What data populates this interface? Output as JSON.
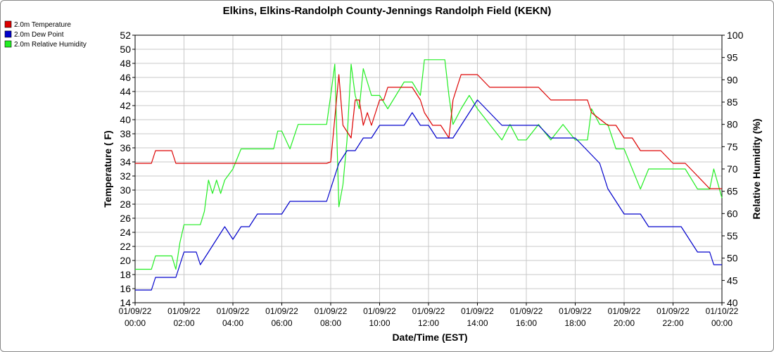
{
  "chart_data": {
    "type": "line",
    "title": "Elkins, Elkins-Randolph County-Jennings Randolph Field (KEKN)",
    "xlabel": "Date/Time (EST)",
    "ylabel_left": "Temperature ( F)",
    "ylabel_right": "Relative Humidity (%)",
    "ylim_left": [
      14,
      52
    ],
    "ylim_right": [
      40,
      100
    ],
    "xlim_hours": [
      0,
      24
    ],
    "grid": true,
    "legend_position": "top-left",
    "y_ticks_left": [
      "14",
      "16",
      "18",
      "20",
      "22",
      "24",
      "26",
      "28",
      "30",
      "32",
      "34",
      "36",
      "38",
      "40",
      "42",
      "44",
      "46",
      "48",
      "50",
      "52"
    ],
    "y_ticks_right": [
      "40",
      "45",
      "50",
      "55",
      "60",
      "65",
      "70",
      "75",
      "80",
      "85",
      "90",
      "95",
      "100"
    ],
    "x_ticks": [
      {
        "date": "01/09/22",
        "time": "00:00"
      },
      {
        "date": "01/09/22",
        "time": "02:00"
      },
      {
        "date": "01/09/22",
        "time": "04:00"
      },
      {
        "date": "01/09/22",
        "time": "06:00"
      },
      {
        "date": "01/09/22",
        "time": "08:00"
      },
      {
        "date": "01/09/22",
        "time": "10:00"
      },
      {
        "date": "01/09/22",
        "time": "12:00"
      },
      {
        "date": "01/09/22",
        "time": "14:00"
      },
      {
        "date": "01/09/22",
        "time": "16:00"
      },
      {
        "date": "01/09/22",
        "time": "18:00"
      },
      {
        "date": "01/09/22",
        "time": "20:00"
      },
      {
        "date": "01/09/22",
        "time": "22:00"
      },
      {
        "date": "01/10/22",
        "time": "00:00"
      }
    ],
    "series": [
      {
        "name": "2.0m Temperature",
        "color": "#dd0000",
        "axis": "left",
        "x": [
          "01/09/22 00:00",
          "01/09/22 00:40",
          "01/09/22 00:50",
          "01/09/22 01:30",
          "01/09/22 01:40",
          "01/09/22 01:50",
          "01/09/22 02:00",
          "01/09/22 03:00",
          "01/09/22 04:00",
          "01/09/22 04:20",
          "01/09/22 05:00",
          "01/09/22 06:00",
          "01/09/22 07:00",
          "01/09/22 07:50",
          "01/09/22 08:00",
          "01/09/22 08:20",
          "01/09/22 08:30",
          "01/09/22 08:50",
          "01/09/22 09:00",
          "01/09/22 09:10",
          "01/09/22 09:20",
          "01/09/22 09:30",
          "01/09/22 09:40",
          "01/09/22 10:00",
          "01/09/22 10:10",
          "01/09/22 10:20",
          "01/09/22 11:00",
          "01/09/22 11:20",
          "01/09/22 11:40",
          "01/09/22 11:50",
          "01/09/22 12:10",
          "01/09/22 12:30",
          "01/09/22 12:50",
          "01/09/22 13:00",
          "01/09/22 13:10",
          "01/09/22 13:20",
          "01/09/22 13:40",
          "01/09/22 14:00",
          "01/09/22 14:30",
          "01/09/22 15:00",
          "01/09/22 15:30",
          "01/09/22 16:00",
          "01/09/22 16:30",
          "01/09/22 17:00",
          "01/09/22 17:30",
          "01/09/22 18:00",
          "01/09/22 18:30",
          "01/09/22 18:40",
          "01/09/22 19:20",
          "01/09/22 19:40",
          "01/09/22 20:00",
          "01/09/22 20:20",
          "01/09/22 20:40",
          "01/09/22 21:00",
          "01/09/22 21:30",
          "01/09/22 22:00",
          "01/09/22 22:30",
          "01/09/22 23:00",
          "01/09/22 23:30",
          "01/10/22 00:00"
        ],
        "values": [
          33.8,
          33.8,
          35.6,
          35.6,
          33.8,
          33.8,
          33.8,
          33.8,
          33.8,
          33.8,
          33.8,
          33.8,
          33.8,
          33.8,
          34.0,
          46.4,
          39.2,
          37.4,
          42.8,
          42.8,
          39.2,
          41.0,
          39.2,
          42.8,
          42.8,
          44.6,
          44.6,
          44.6,
          42.8,
          41.0,
          39.2,
          39.2,
          37.4,
          42.8,
          44.6,
          46.4,
          46.4,
          46.4,
          44.6,
          44.6,
          44.6,
          44.6,
          44.6,
          42.8,
          42.8,
          42.8,
          42.8,
          41.0,
          39.2,
          39.2,
          37.4,
          37.4,
          35.6,
          35.6,
          35.6,
          33.8,
          33.8,
          32.0,
          30.2,
          30.2
        ]
      },
      {
        "name": "2.0m Dew Point",
        "color": "#0000cc",
        "axis": "left",
        "x": [
          "01/09/22 00:00",
          "01/09/22 00:40",
          "01/09/22 00:50",
          "01/09/22 01:40",
          "01/09/22 01:50",
          "01/09/22 02:00",
          "01/09/22 02:30",
          "01/09/22 02:40",
          "01/09/22 03:00",
          "01/09/22 03:20",
          "01/09/22 03:40",
          "01/09/22 04:00",
          "01/09/22 04:20",
          "01/09/22 04:40",
          "01/09/22 05:00",
          "01/09/22 05:40",
          "01/09/22 06:00",
          "01/09/22 06:20",
          "01/09/22 06:40",
          "01/09/22 07:00",
          "01/09/22 07:50",
          "01/09/22 08:00",
          "01/09/22 08:20",
          "01/09/22 08:40",
          "01/09/22 09:00",
          "01/09/22 09:20",
          "01/09/22 09:40",
          "01/09/22 10:00",
          "01/09/22 11:00",
          "01/09/22 11:20",
          "01/09/22 11:40",
          "01/09/22 12:00",
          "01/09/22 12:20",
          "01/09/22 12:40",
          "01/09/22 13:00",
          "01/09/22 13:20",
          "01/09/22 13:40",
          "01/09/22 14:00",
          "01/09/22 14:30",
          "01/09/22 15:00",
          "01/09/22 15:30",
          "01/09/22 16:00",
          "01/09/22 16:30",
          "01/09/22 17:00",
          "01/09/22 17:30",
          "01/09/22 18:00",
          "01/09/22 18:30",
          "01/09/22 19:00",
          "01/09/22 19:20",
          "01/09/22 19:40",
          "01/09/22 20:00",
          "01/09/22 20:20",
          "01/09/22 20:40",
          "01/09/22 21:00",
          "01/09/22 21:20",
          "01/09/22 21:40",
          "01/09/22 22:00",
          "01/09/22 22:20",
          "01/09/22 22:40",
          "01/09/22 23:00",
          "01/09/22 23:30",
          "01/09/22 23:40",
          "01/10/22 00:00"
        ],
        "values": [
          15.8,
          15.8,
          17.6,
          17.6,
          19.4,
          21.2,
          21.2,
          19.4,
          21.2,
          23.0,
          24.8,
          23.0,
          24.8,
          24.8,
          26.6,
          26.6,
          26.6,
          28.4,
          28.4,
          28.4,
          28.4,
          30.2,
          33.8,
          35.6,
          35.6,
          37.4,
          37.4,
          39.2,
          39.2,
          41.0,
          39.2,
          39.2,
          37.4,
          37.4,
          37.4,
          39.2,
          41.0,
          42.8,
          41.0,
          39.2,
          39.2,
          39.2,
          39.2,
          37.4,
          37.4,
          37.4,
          35.6,
          33.8,
          30.2,
          28.4,
          26.6,
          26.6,
          26.6,
          24.8,
          24.8,
          24.8,
          24.8,
          24.8,
          23.0,
          21.2,
          21.2,
          19.4,
          19.4
        ]
      },
      {
        "name": "2.0m Relative Humidity",
        "color": "#22ee22",
        "axis": "right",
        "x": [
          "01/09/22 00:00",
          "01/09/22 00:40",
          "01/09/22 00:50",
          "01/09/22 01:30",
          "01/09/22 01:40",
          "01/09/22 01:50",
          "01/09/22 02:00",
          "01/09/22 02:40",
          "01/09/22 02:50",
          "01/09/22 03:00",
          "01/09/22 03:10",
          "01/09/22 03:20",
          "01/09/22 03:30",
          "01/09/22 03:40",
          "01/09/22 04:00",
          "01/09/22 04:20",
          "01/09/22 04:30",
          "01/09/22 05:00",
          "01/09/22 05:40",
          "01/09/22 05:50",
          "01/09/22 06:00",
          "01/09/22 06:20",
          "01/09/22 06:40",
          "01/09/22 06:50",
          "01/09/22 07:00",
          "01/09/22 07:50",
          "01/09/22 08:00",
          "01/09/22 08:10",
          "01/09/22 08:20",
          "01/09/22 08:30",
          "01/09/22 08:40",
          "01/09/22 08:50",
          "01/09/22 09:00",
          "01/09/22 09:10",
          "01/09/22 09:20",
          "01/09/22 09:40",
          "01/09/22 10:00",
          "01/09/22 10:20",
          "01/09/22 10:40",
          "01/09/22 11:00",
          "01/09/22 11:20",
          "01/09/22 11:40",
          "01/09/22 11:50",
          "01/09/22 12:00",
          "01/09/22 12:40",
          "01/09/22 12:50",
          "01/09/22 13:00",
          "01/09/22 13:20",
          "01/09/22 13:40",
          "01/09/22 14:00",
          "01/09/22 14:30",
          "01/09/22 15:00",
          "01/09/22 15:20",
          "01/09/22 15:40",
          "01/09/22 16:00",
          "01/09/22 16:30",
          "01/09/22 17:00",
          "01/09/22 17:30",
          "01/09/22 18:00",
          "01/09/22 18:30",
          "01/09/22 18:40",
          "01/09/22 19:00",
          "01/09/22 19:20",
          "01/09/22 19:40",
          "01/09/22 20:00",
          "01/09/22 20:20",
          "01/09/22 20:40",
          "01/09/22 21:00",
          "01/09/22 21:20",
          "01/09/22 21:40",
          "01/09/22 22:00",
          "01/09/22 22:30",
          "01/09/22 23:00",
          "01/09/22 23:30",
          "01/09/22 23:40",
          "01/10/22 00:00"
        ],
        "values": [
          47.5,
          47.5,
          50.5,
          50.5,
          47.5,
          53.5,
          57.5,
          57.5,
          60.5,
          67.5,
          64.5,
          67.5,
          64.5,
          67.5,
          70.0,
          74.5,
          74.5,
          74.5,
          74.5,
          78.5,
          78.5,
          74.5,
          80.0,
          80.0,
          80.0,
          80.0,
          86.5,
          93.5,
          61.5,
          66.5,
          76.5,
          93.5,
          86.5,
          83.5,
          92.5,
          86.5,
          86.5,
          83.5,
          86.5,
          89.5,
          89.5,
          86.5,
          94.5,
          94.5,
          94.5,
          86.5,
          80.0,
          83.5,
          86.5,
          83.5,
          80.0,
          76.5,
          80.0,
          76.5,
          76.5,
          80.0,
          76.5,
          80.0,
          76.5,
          76.5,
          83.5,
          80.0,
          80.0,
          74.5,
          74.5,
          70.0,
          65.5,
          70.0,
          70.0,
          70.0,
          70.0,
          70.0,
          65.5,
          65.5,
          70.0,
          63.5
        ]
      }
    ]
  }
}
